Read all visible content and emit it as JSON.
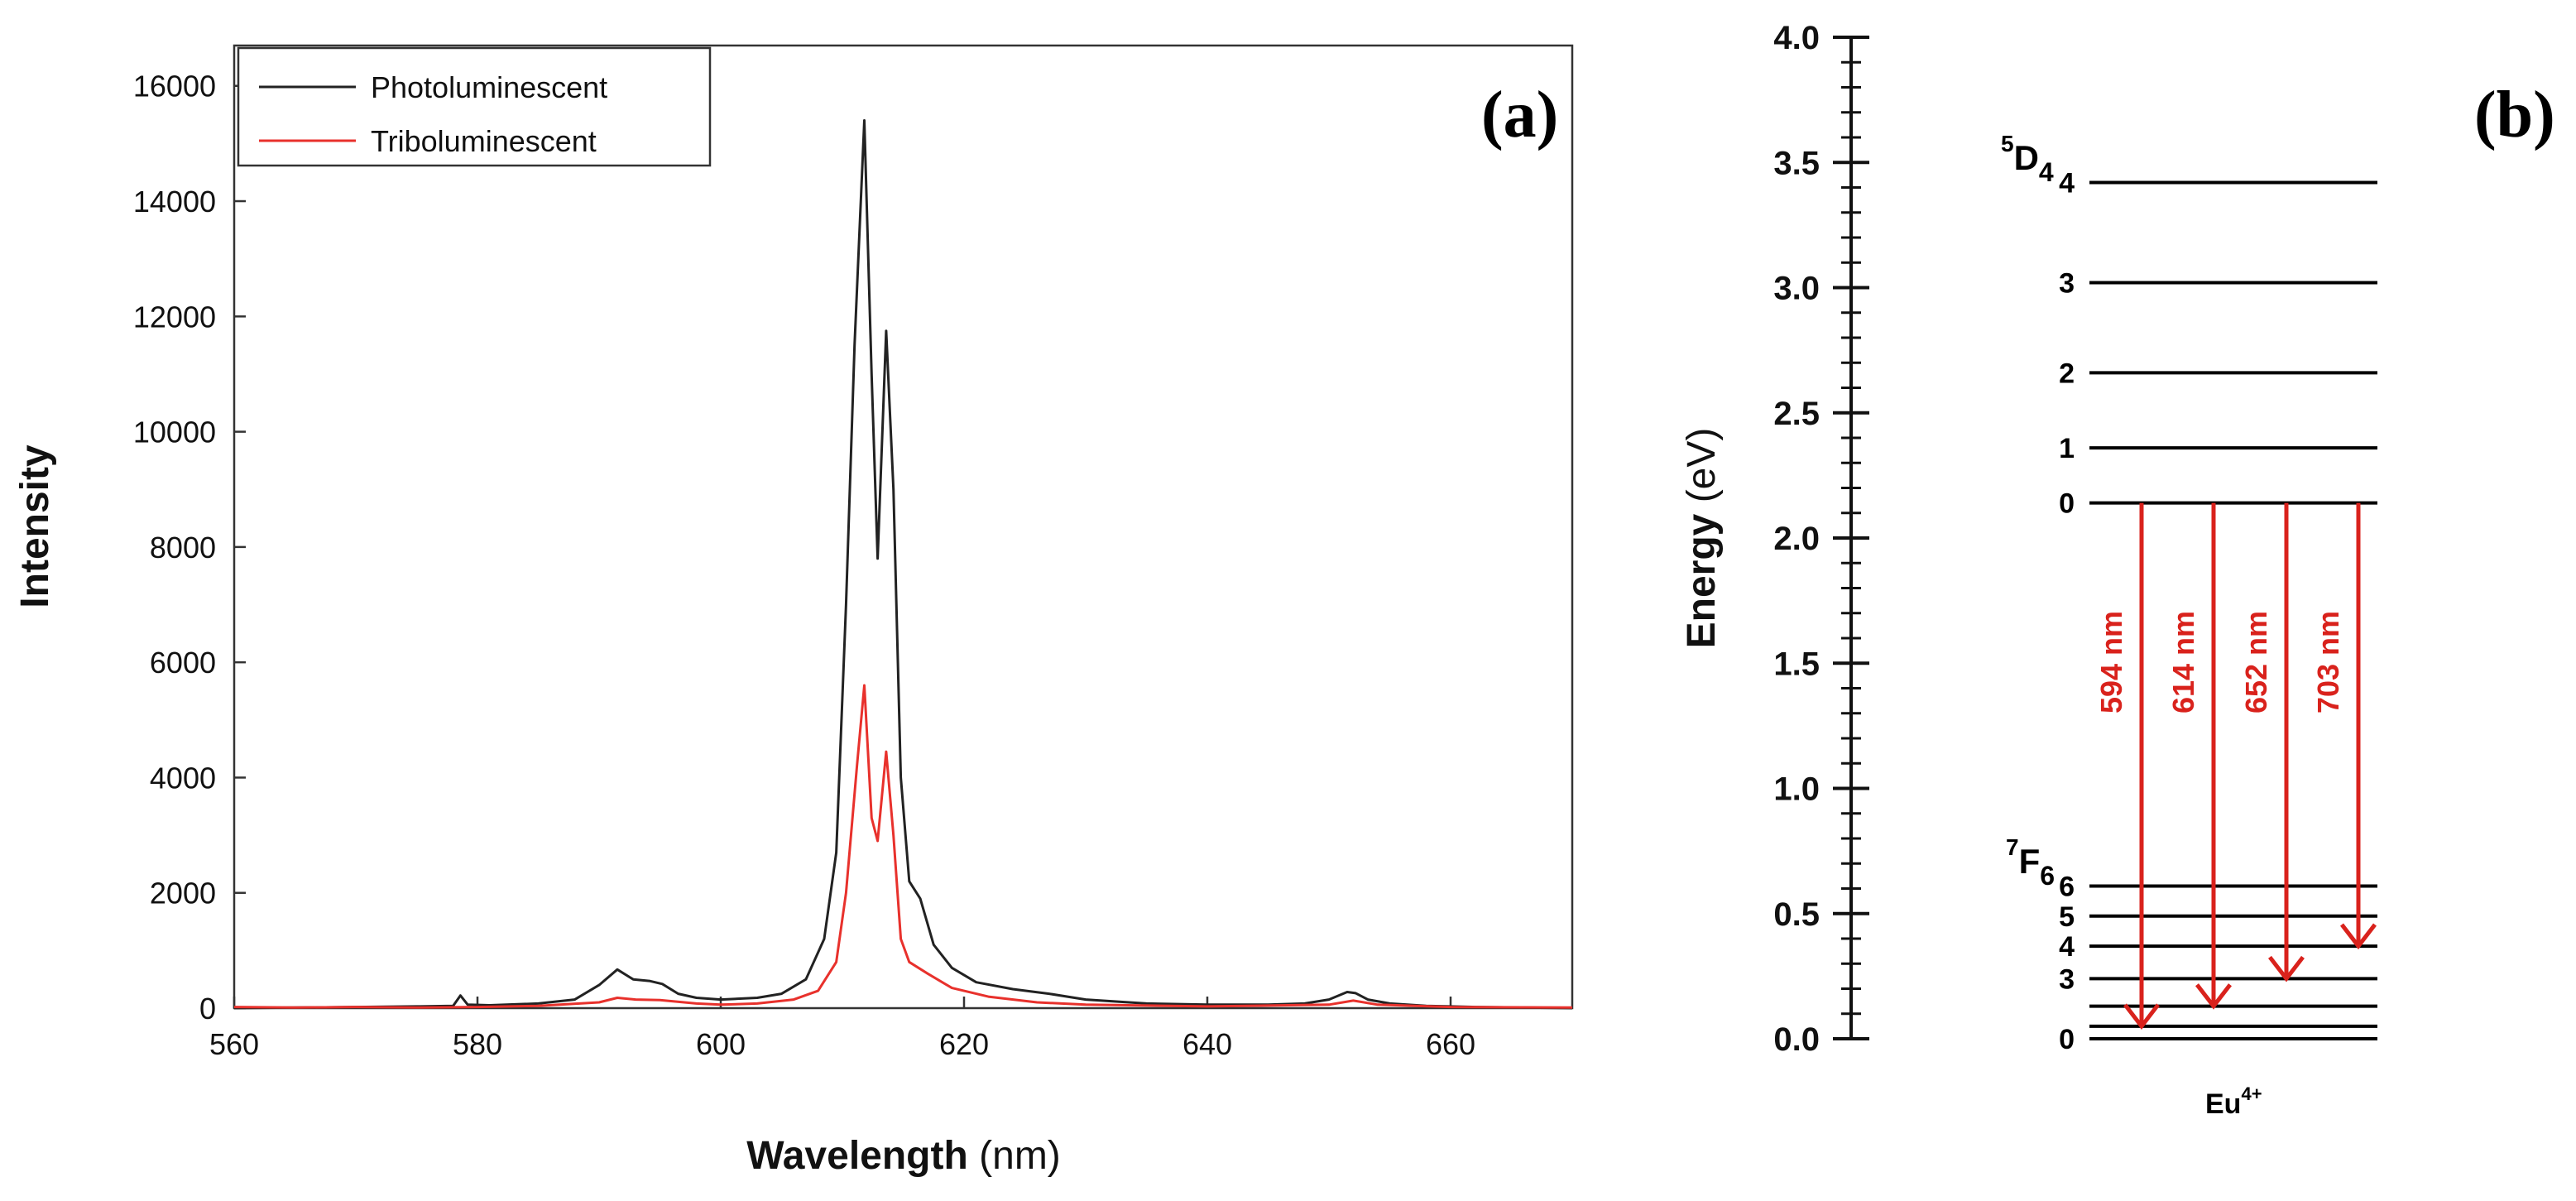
{
  "chart_data": [
    {
      "type": "line",
      "panel_label": "(a)",
      "xlabel_bold": "Wavelength",
      "xlabel_unit": " (nm)",
      "ylabel": "Intensity",
      "xlim": [
        560,
        670
      ],
      "ylim": [
        0,
        16700
      ],
      "xticks": [
        560,
        580,
        600,
        620,
        640,
        660
      ],
      "yticks": [
        0,
        2000,
        4000,
        6000,
        8000,
        10000,
        12000,
        14000,
        16000
      ],
      "legend_position": "top-left",
      "series": [
        {
          "name": "Photoluminescent",
          "color": "#222222",
          "x": [
            560,
            565,
            570,
            575,
            578,
            578.6,
            579.2,
            581,
            585,
            588,
            590,
            591.5,
            592.8,
            594.2,
            595.2,
            596.5,
            598,
            600,
            603,
            605,
            607,
            608.5,
            609.5,
            610.3,
            611,
            611.8,
            612.4,
            612.9,
            613.6,
            614.2,
            614.8,
            615.5,
            616.4,
            617.5,
            619,
            621,
            624,
            627,
            630,
            635,
            640,
            645,
            648,
            650,
            651.5,
            652.2,
            653.2,
            655,
            658,
            662,
            666,
            670
          ],
          "y": [
            0,
            10,
            20,
            30,
            40,
            220,
            60,
            50,
            80,
            150,
            400,
            670,
            500,
            470,
            420,
            250,
            180,
            150,
            180,
            250,
            500,
            1200,
            2700,
            7000,
            11500,
            15400,
            11000,
            7800,
            11750,
            9000,
            4000,
            2200,
            1900,
            1100,
            700,
            450,
            330,
            250,
            150,
            80,
            60,
            60,
            80,
            150,
            280,
            260,
            150,
            80,
            40,
            20,
            10,
            0
          ]
        },
        {
          "name": "Triboluminescent",
          "color": "#e8312c",
          "x": [
            560,
            565,
            570,
            575,
            580,
            585,
            590,
            591.5,
            593,
            595,
            598,
            600,
            603,
            606,
            608,
            609.5,
            610.3,
            611.2,
            611.8,
            612.4,
            612.9,
            613.6,
            614.2,
            614.8,
            615.5,
            617,
            619,
            622,
            626,
            630,
            640,
            650,
            652,
            654,
            660,
            670
          ],
          "y": [
            20,
            10,
            20,
            10,
            20,
            40,
            100,
            180,
            150,
            140,
            80,
            60,
            80,
            150,
            300,
            800,
            2000,
            4200,
            5600,
            3300,
            2900,
            4450,
            3000,
            1200,
            800,
            600,
            350,
            200,
            100,
            60,
            30,
            60,
            130,
            60,
            20,
            10
          ]
        }
      ]
    },
    {
      "type": "energy-level-diagram",
      "panel_label": "(b)",
      "ylabel_bold": "Energy",
      "ylabel_unit": " (eV)",
      "ylim": [
        0,
        4.0
      ],
      "yticks": [
        "0.0",
        "0.5",
        "1.0",
        "1.5",
        "2.0",
        "2.5",
        "3.0",
        "3.5",
        "4.0"
      ],
      "ion_label": "Eu",
      "ion_charge": "4+",
      "excited_multiplet": {
        "term_sup": "5",
        "term_base": "D",
        "term_sub": "4",
        "levels": [
          {
            "label": "4",
            "energy": 3.42
          },
          {
            "label": "3",
            "energy": 3.02
          },
          {
            "label": "2",
            "energy": 2.66
          },
          {
            "label": "1",
            "energy": 2.36
          },
          {
            "label": "0",
            "energy": 2.14
          }
        ]
      },
      "ground_multiplet": {
        "term_sup": "7",
        "term_base": "F",
        "term_sub": "6",
        "levels": [
          {
            "label": "6",
            "energy": 0.61
          },
          {
            "label": "5",
            "energy": 0.49
          },
          {
            "label": "4",
            "energy": 0.37
          },
          {
            "label": "3",
            "energy": 0.24
          },
          {
            "label": "",
            "energy": 0.13
          },
          {
            "label": "",
            "energy": 0.05
          },
          {
            "label": "0",
            "energy": 0.0
          }
        ]
      },
      "transitions": [
        {
          "label": "594 nm",
          "from_energy": 2.14,
          "to_energy": 0.05,
          "color": "#d9221c"
        },
        {
          "label": "614 nm",
          "from_energy": 2.14,
          "to_energy": 0.13,
          "color": "#d9221c"
        },
        {
          "label": "652 nm",
          "from_energy": 2.14,
          "to_energy": 0.24,
          "color": "#d9221c"
        },
        {
          "label": "703 nm",
          "from_energy": 2.14,
          "to_energy": 0.37,
          "color": "#d9221c"
        }
      ]
    }
  ]
}
